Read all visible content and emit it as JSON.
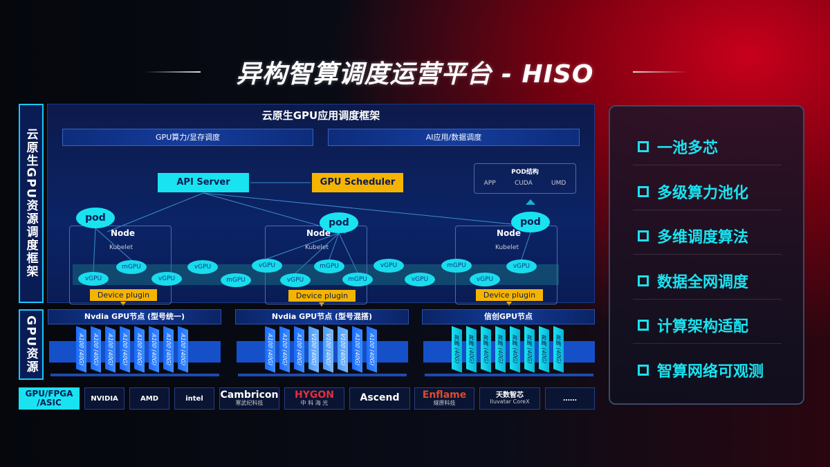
{
  "title": "异构智算调度运营平台 - HISO",
  "left_labels": {
    "framework": "云原生GPU资源调度框架",
    "gpu": "GPU资源"
  },
  "framework": {
    "header": "云原生GPU应用调度框架",
    "bars": [
      "GPU算力/显存调度",
      "AI应用/数据调度"
    ],
    "api_server": "API Server",
    "gpu_scheduler": "GPU Scheduler",
    "pod_struct": {
      "title": "POD结构",
      "items": [
        "APP",
        "CUDA",
        "UMD"
      ]
    },
    "pod_label": "pod",
    "node_label": "Node",
    "kubelet_label": "Kubelet",
    "device_plugin": "Device plugin",
    "units": [
      "vGPU",
      "mGPU",
      "vGPU",
      "vGPU",
      "mGPU",
      "vGPU",
      "vGPU",
      "mGPU",
      "mGPU",
      "vGPU",
      "vGPU",
      "mGPU",
      "vGPU",
      "vGPU"
    ]
  },
  "gpu_nodes": [
    {
      "title": "Nvdia GPU节点 (型号统一)",
      "chips": [
        "A100 (40G)",
        "A100 (40G)",
        "A100 (40G)",
        "A100 (40G)",
        "A100 (40G)",
        "A100 (40G)",
        "A100 (40G)",
        "A100 (40G)"
      ]
    },
    {
      "title": "Nvdia GPU节点 (型号混搭)",
      "chips": [
        "A100 (40G)",
        "A100 (40G)",
        "A100 (40G)",
        "V100 (40G)",
        "V100 (40G)",
        "V100 (40G)",
        "A100 (40G)",
        "A100 (40G)"
      ]
    },
    {
      "title": "信创GPU节点",
      "chips": [
        "昇腾 (40G)",
        "昇腾 (40G)",
        "昇腾 (40G)",
        "昇腾 (40G)",
        "昇腾 (40G)",
        "昇腾 (40G)",
        "昇腾 (40G)",
        "昇腾 (40G)"
      ]
    }
  ],
  "vendors": {
    "label": "GPU/FPGA /ASIC",
    "logos": [
      {
        "name": "NVIDIA",
        "sub": ""
      },
      {
        "name": "AMD",
        "sub": ""
      },
      {
        "name": "intel",
        "sub": ""
      },
      {
        "name": "Cambricon",
        "sub": "寒武纪科技"
      },
      {
        "name": "HYGON",
        "sub": "中 科 海 光"
      },
      {
        "name": "Ascend",
        "sub": ""
      },
      {
        "name": "Enflame",
        "sub": "燧原科技"
      },
      {
        "name": "天数智芯",
        "sub": "Iluvatar CoreX"
      },
      {
        "name": "……",
        "sub": ""
      }
    ]
  },
  "features": [
    "一池多芯",
    "多级算力池化",
    "多维调度算法",
    "数据全网调度",
    "计算架构适配",
    "智算网络可观测"
  ],
  "colors": {
    "cyan": "#19e3f0",
    "orange": "#f5b400",
    "blue": "#1550c8",
    "red": "#c8001c"
  }
}
